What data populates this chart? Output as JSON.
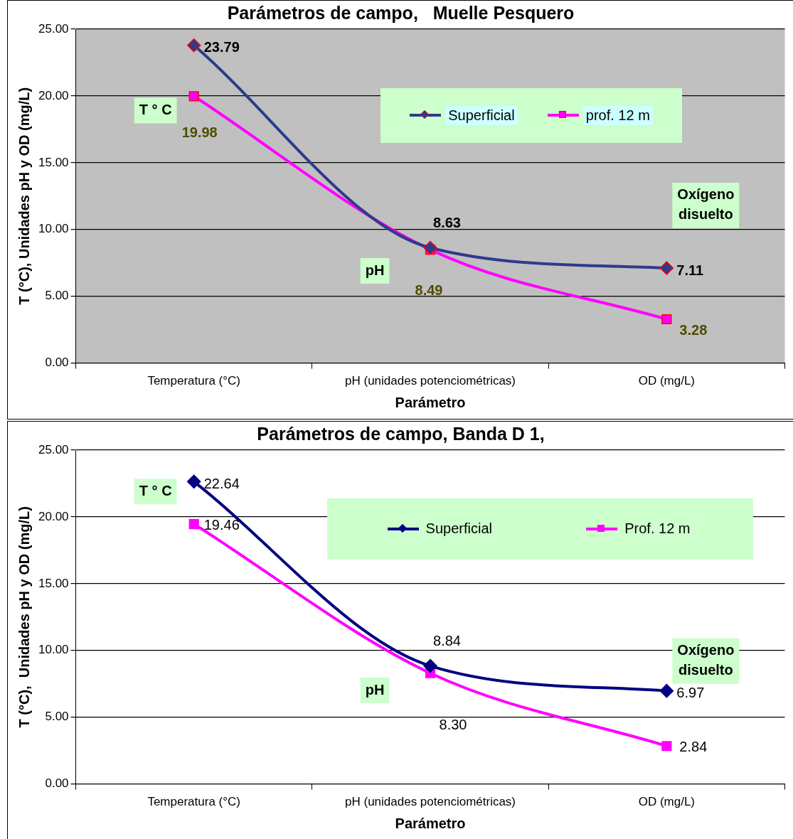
{
  "chart_data": [
    {
      "type": "line",
      "title": "Parámetros de campo,   Muelle Pesquero",
      "xlabel": "Parámetro",
      "ylabel": "T (°C), Unidades pH y OD (mg/L)",
      "categories": [
        "Temperatura (°C)",
        "pH (unidades potenciométricas)",
        "OD (mg/L)"
      ],
      "series": [
        {
          "name": "Superficial",
          "color": "#2e3a8c",
          "marker": "diamond",
          "values": [
            23.79,
            8.63,
            7.11
          ],
          "value_labels": [
            "23.79",
            "8.63",
            "7.11"
          ]
        },
        {
          "name": "prof. 12 m",
          "color": "#ff00ff",
          "marker": "square",
          "values": [
            19.98,
            8.49,
            3.28
          ],
          "value_labels": [
            "19.98",
            "8.49",
            "3.28"
          ]
        }
      ],
      "ylim": [
        0,
        25
      ],
      "yticks": [
        {
          "value": 0,
          "label": "0.00"
        },
        {
          "value": 5,
          "label": "5.00"
        },
        {
          "value": 10,
          "label": "10.00"
        },
        {
          "value": 15,
          "label": "15.00"
        },
        {
          "value": 20,
          "label": "20.00"
        },
        {
          "value": 25,
          "label": "25.00"
        }
      ],
      "grid": "y",
      "legend": "top right",
      "annotations": [
        "T ° C",
        "pH",
        "Oxígeno disuelto"
      ]
    },
    {
      "type": "line",
      "title": "Parámetros de campo, Banda D 1,",
      "xlabel": "Parámetro",
      "ylabel": "T (°C),  Unidades pH y OD (mg/L)",
      "categories": [
        "Temperatura (°C)",
        "pH (unidades potenciométricas)",
        "OD (mg/L)"
      ],
      "series": [
        {
          "name": "Superficial",
          "color": "#000080",
          "marker": "diamond",
          "values": [
            22.64,
            8.84,
            6.97
          ],
          "value_labels": [
            "22.64",
            "8.84",
            "6.97"
          ]
        },
        {
          "name": "Prof. 12 m",
          "color": "#ff00ff",
          "marker": "square",
          "values": [
            19.46,
            8.3,
            2.84
          ],
          "value_labels": [
            "19.46",
            "8.30",
            "2.84"
          ]
        }
      ],
      "ylim": [
        0,
        25
      ],
      "yticks": [
        {
          "value": 0,
          "label": "0.00"
        },
        {
          "value": 5,
          "label": "5.00"
        },
        {
          "value": 10,
          "label": "10.00"
        },
        {
          "value": 15,
          "label": "15.00"
        },
        {
          "value": 20,
          "label": "20.00"
        },
        {
          "value": 25,
          "label": "25.00"
        }
      ],
      "grid": "y",
      "legend": "top right",
      "annotations": [
        "T ° C",
        "pH",
        "Oxígeno disuelto"
      ]
    }
  ]
}
